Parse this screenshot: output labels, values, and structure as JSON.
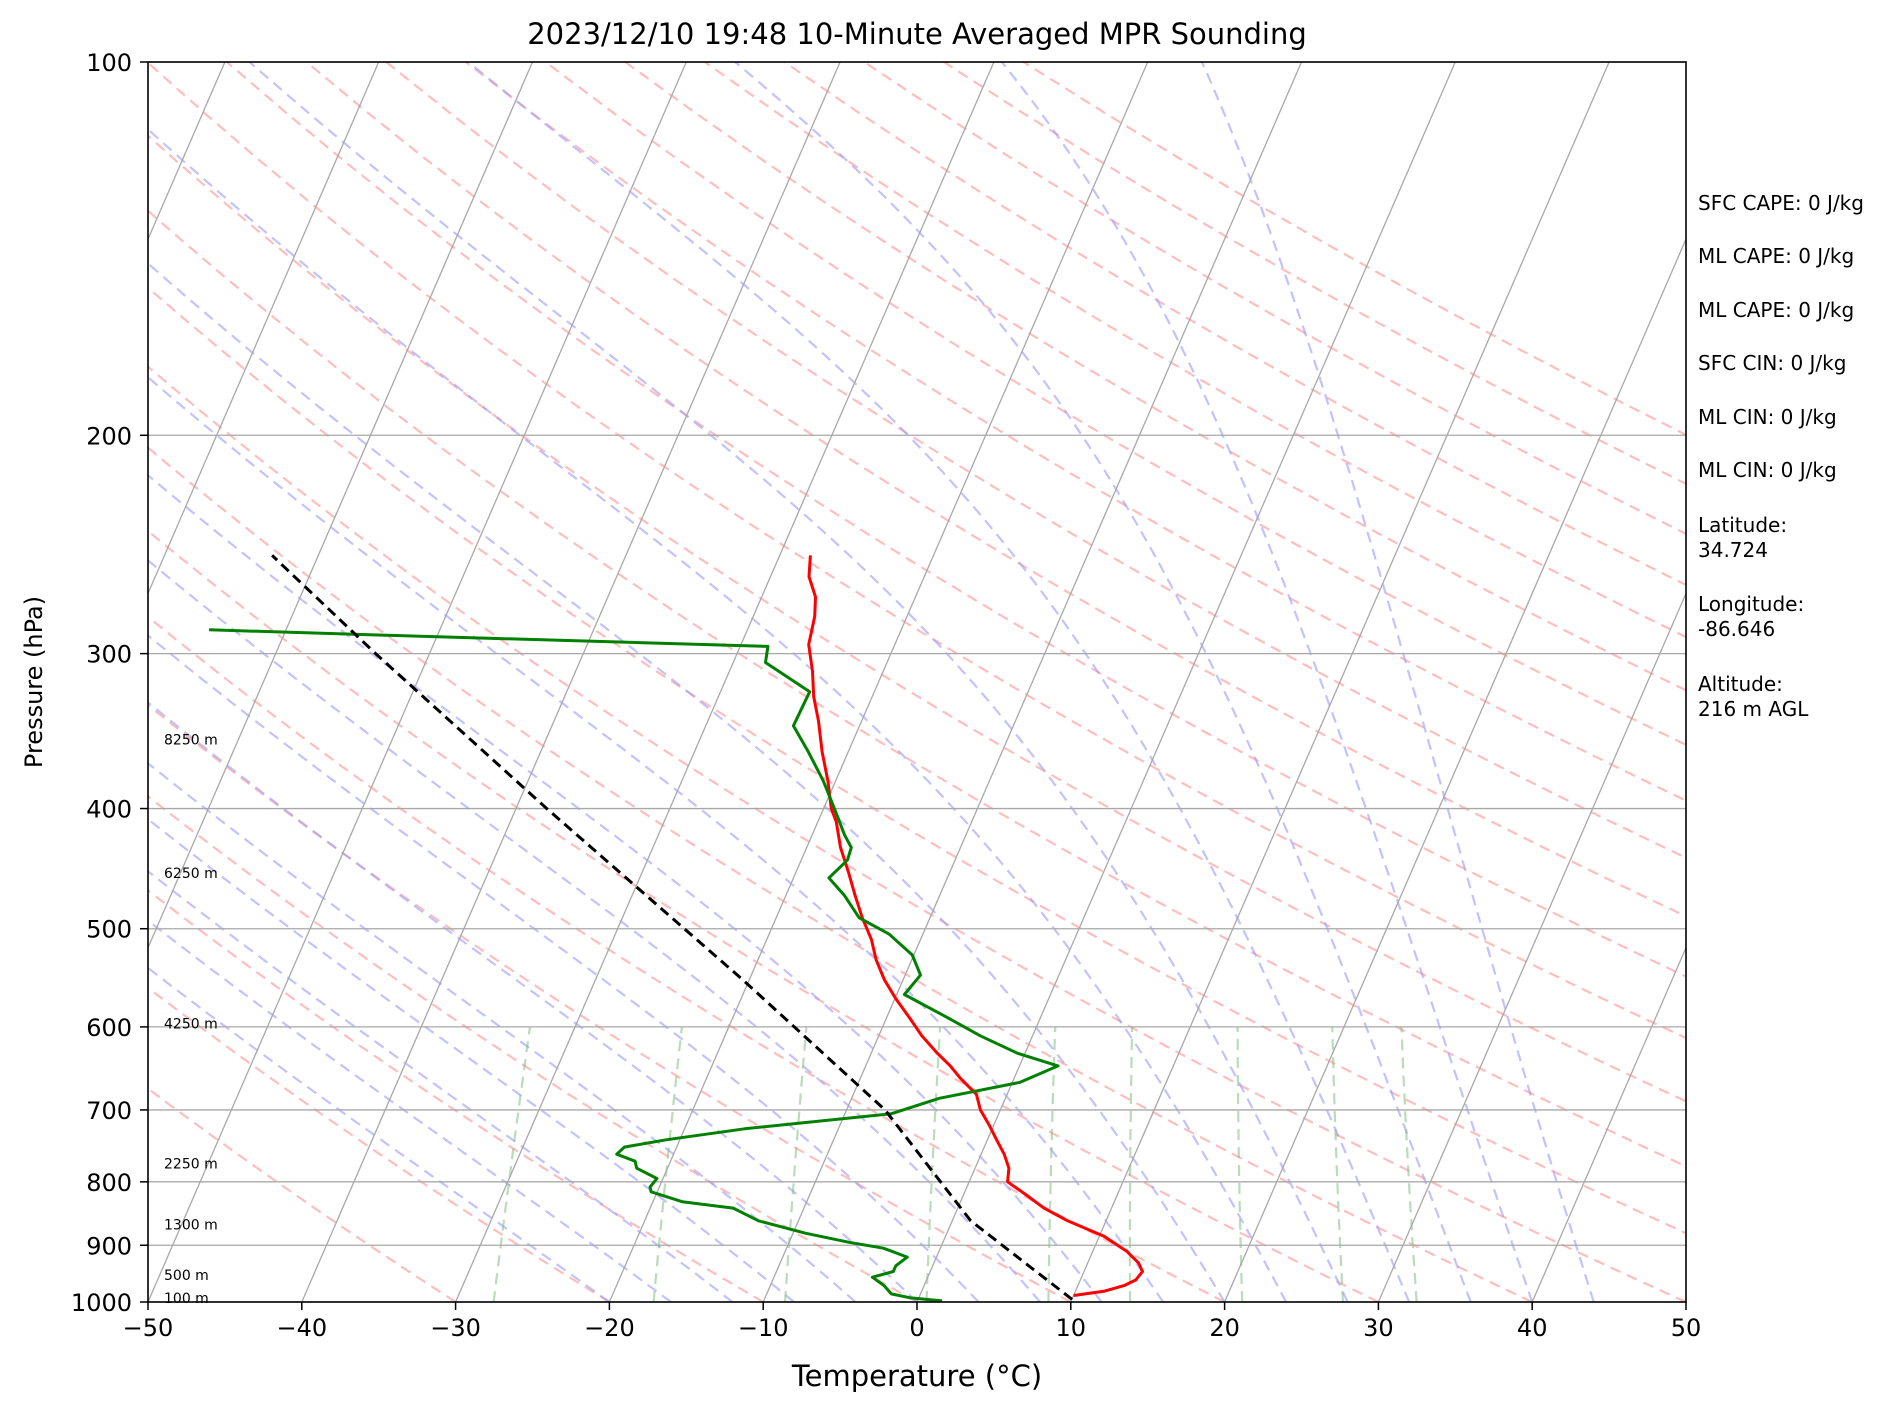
{
  "chart_data": {
    "type": "line",
    "title": "2023/12/10 19:48 10-Minute Averaged MPR Sounding",
    "xlabel": "Temperature (°C)",
    "ylabel": "Pressure (hPa)",
    "xlim": [
      -50,
      50
    ],
    "ylim": [
      1000,
      100
    ],
    "y_scale": "log",
    "skew_t": true,
    "grid": true,
    "x_ticks": [
      -50,
      -40,
      -30,
      -20,
      -10,
      0,
      10,
      20,
      30,
      40,
      50
    ],
    "y_ticks": [
      100,
      200,
      300,
      400,
      500,
      600,
      700,
      800,
      900,
      1000
    ],
    "height_labels": [
      {
        "p": 352,
        "text": "8250 m"
      },
      {
        "p": 451,
        "text": "6250 m"
      },
      {
        "p": 596,
        "text": "4250 m"
      },
      {
        "p": 773,
        "text": "2250 m"
      },
      {
        "p": 866,
        "text": "1300 m"
      },
      {
        "p": 951,
        "text": "500 m"
      },
      {
        "p": 993,
        "text": "100 m"
      }
    ],
    "series": [
      {
        "color": "#ff0000",
        "values": [
          {
            "p": 988,
            "t": 10.0
          },
          {
            "p": 980,
            "t": 11.9
          },
          {
            "p": 970,
            "t": 13.0
          },
          {
            "p": 960,
            "t": 13.6
          },
          {
            "p": 945,
            "t": 13.8
          },
          {
            "p": 930,
            "t": 13.3
          },
          {
            "p": 910,
            "t": 12.2
          },
          {
            "p": 885,
            "t": 10.3
          },
          {
            "p": 860,
            "t": 7.5
          },
          {
            "p": 840,
            "t": 5.6
          },
          {
            "p": 820,
            "t": 4.1
          },
          {
            "p": 800,
            "t": 2.5
          },
          {
            "p": 780,
            "t": 2.2
          },
          {
            "p": 760,
            "t": 1.5
          },
          {
            "p": 740,
            "t": 0.6
          },
          {
            "p": 720,
            "t": -0.3
          },
          {
            "p": 700,
            "t": -1.3
          },
          {
            "p": 680,
            "t": -2.0
          },
          {
            "p": 660,
            "t": -3.5
          },
          {
            "p": 645,
            "t": -4.5
          },
          {
            "p": 630,
            "t": -5.7
          },
          {
            "p": 610,
            "t": -7.2
          },
          {
            "p": 590,
            "t": -8.5
          },
          {
            "p": 570,
            "t": -9.9
          },
          {
            "p": 550,
            "t": -11.2
          },
          {
            "p": 530,
            "t": -12.3
          },
          {
            "p": 510,
            "t": -13.2
          },
          {
            "p": 490,
            "t": -14.4
          },
          {
            "p": 470,
            "t": -15.5
          },
          {
            "p": 450,
            "t": -16.6
          },
          {
            "p": 430,
            "t": -17.8
          },
          {
            "p": 410,
            "t": -18.8
          },
          {
            "p": 400,
            "t": -19.5
          },
          {
            "p": 380,
            "t": -20.5
          },
          {
            "p": 360,
            "t": -21.7
          },
          {
            "p": 340,
            "t": -22.8
          },
          {
            "p": 325,
            "t": -23.8
          },
          {
            "p": 310,
            "t": -24.6
          },
          {
            "p": 295,
            "t": -25.6
          },
          {
            "p": 280,
            "t": -26.0
          },
          {
            "p": 270,
            "t": -26.5
          },
          {
            "p": 260,
            "t": -27.5
          },
          {
            "p": 250,
            "t": -28.0
          }
        ]
      },
      {
        "color": "#008000",
        "values": [
          {
            "p": 998,
            "t": 1.6
          },
          {
            "p": 992,
            "t": -0.6
          },
          {
            "p": 985,
            "t": -1.9
          },
          {
            "p": 970,
            "t": -2.6
          },
          {
            "p": 955,
            "t": -3.6
          },
          {
            "p": 945,
            "t": -2.4
          },
          {
            "p": 935,
            "t": -2.4
          },
          {
            "p": 920,
            "t": -1.9
          },
          {
            "p": 905,
            "t": -3.7
          },
          {
            "p": 895,
            "t": -6.1
          },
          {
            "p": 880,
            "t": -9.2
          },
          {
            "p": 860,
            "t": -12.6
          },
          {
            "p": 840,
            "t": -14.6
          },
          {
            "p": 830,
            "t": -18.1
          },
          {
            "p": 815,
            "t": -20.4
          },
          {
            "p": 808,
            "t": -20.6
          },
          {
            "p": 795,
            "t": -20.4
          },
          {
            "p": 780,
            "t": -22.0
          },
          {
            "p": 770,
            "t": -22.3
          },
          {
            "p": 760,
            "t": -23.7
          },
          {
            "p": 750,
            "t": -23.4
          },
          {
            "p": 740,
            "t": -20.9
          },
          {
            "p": 725,
            "t": -16.1
          },
          {
            "p": 705,
            "t": -7.0
          },
          {
            "p": 685,
            "t": -4.3
          },
          {
            "p": 665,
            "t": 0.5
          },
          {
            "p": 645,
            "t": 2.5
          },
          {
            "p": 630,
            "t": -0.5
          },
          {
            "p": 610,
            "t": -3.4
          },
          {
            "p": 590,
            "t": -6.0
          },
          {
            "p": 565,
            "t": -9.5
          },
          {
            "p": 545,
            "t": -9.0
          },
          {
            "p": 525,
            "t": -10.1
          },
          {
            "p": 505,
            "t": -12.2
          },
          {
            "p": 490,
            "t": -14.6
          },
          {
            "p": 470,
            "t": -16.2
          },
          {
            "p": 455,
            "t": -17.7
          },
          {
            "p": 440,
            "t": -17.0
          },
          {
            "p": 430,
            "t": -17.1
          },
          {
            "p": 420,
            "t": -17.9
          },
          {
            "p": 400,
            "t": -19.3
          },
          {
            "p": 380,
            "t": -20.8
          },
          {
            "p": 360,
            "t": -22.6
          },
          {
            "p": 343,
            "t": -24.3
          },
          {
            "p": 322,
            "t": -24.2
          },
          {
            "p": 305,
            "t": -27.9
          },
          {
            "p": 296,
            "t": -28.2
          },
          {
            "p": 290,
            "t": -53.0
          },
          {
            "p": 287,
            "t": -65.0
          }
        ]
      },
      {
        "color": "#000000",
        "dashed": true,
        "values": [
          {
            "p": 995,
            "t": 10.0
          },
          {
            "p": 860,
            "t": 1.2
          },
          {
            "p": 700,
            "t": -7.5
          },
          {
            "p": 550,
            "t": -20.4
          },
          {
            "p": 400,
            "t": -38.0
          },
          {
            "p": 300,
            "t": -53.5
          },
          {
            "p": 250,
            "t": -63.0
          }
        ]
      }
    ]
  },
  "annotations": [
    "SFC CAPE: 0 J/kg",
    "ML CAPE: 0 J/kg",
    "ML CAPE: 0 J/kg",
    "SFC CIN: 0 J/kg",
    "ML CIN: 0 J/kg",
    "ML CIN: 0 J/kg",
    "Latitude:",
    "34.724",
    "Longitude:",
    "-86.646",
    "Altitude:",
    "216 m AGL"
  ]
}
